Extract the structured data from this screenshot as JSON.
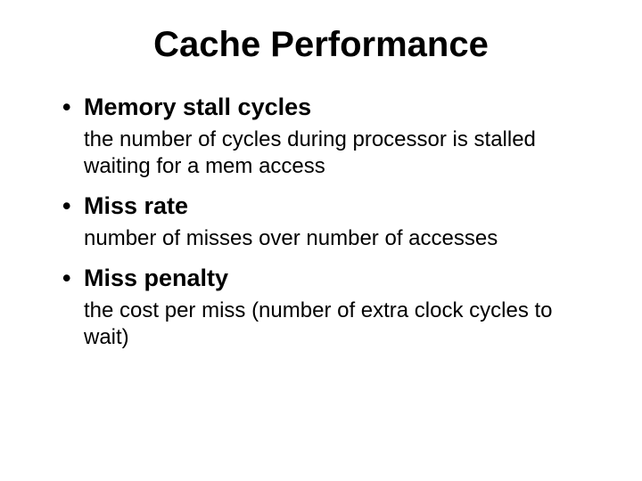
{
  "slide": {
    "title": "Cache Performance",
    "title_fontsize": 40,
    "title_weight": "bold",
    "background_color": "#ffffff",
    "text_color": "#000000",
    "font_family": "Verdana",
    "bullets": [
      {
        "header": "Memory stall cycles",
        "description": "the number of cycles during processor is stalled waiting for a mem access"
      },
      {
        "header": "Miss rate",
        "description": "number of misses over number of accesses"
      },
      {
        "header": "Miss penalty",
        "description": "the cost per miss (number of extra clock cycles to wait)"
      }
    ],
    "header_fontsize": 27,
    "header_weight": "bold",
    "description_fontsize": 24,
    "description_weight": "normal"
  }
}
